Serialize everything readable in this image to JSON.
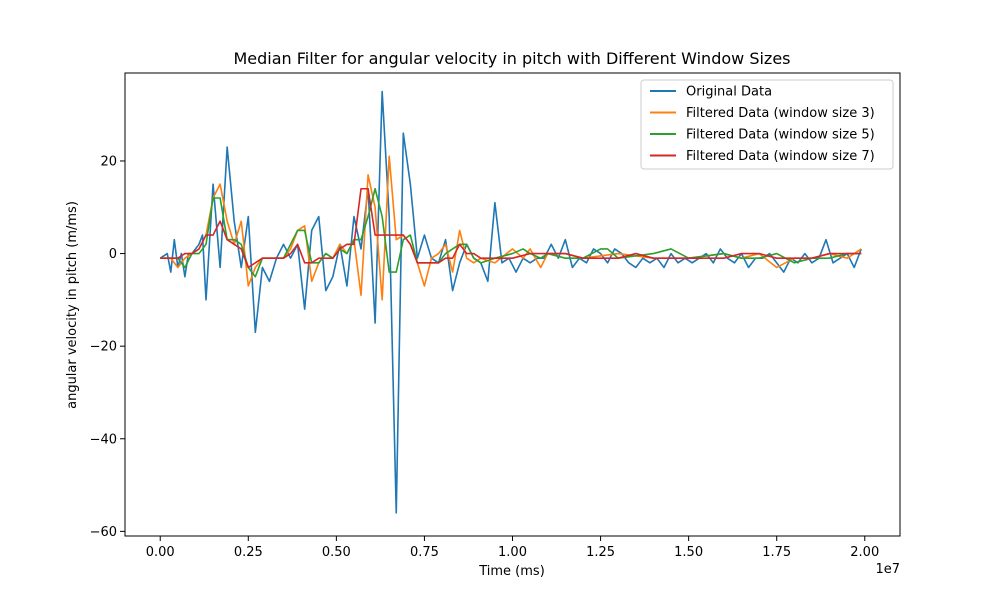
{
  "chart_data": {
    "type": "line",
    "title": "Median Filter for angular velocity in pitch with Different Window Sizes",
    "xlabel": "Time (ms)",
    "ylabel": "angular velocity in pitch (m/ms)",
    "x_offset_label": "1e7",
    "xlim": [
      -0.1,
      2.1
    ],
    "ylim": [
      -61,
      39
    ],
    "x_ticks": [
      0.0,
      0.25,
      0.5,
      0.75,
      1.0,
      1.25,
      1.5,
      1.75,
      2.0
    ],
    "x_tick_labels": [
      "0.00",
      "0.25",
      "0.50",
      "0.75",
      "1.00",
      "1.25",
      "1.50",
      "1.75",
      "2.00"
    ],
    "y_ticks": [
      -60,
      -40,
      -20,
      0,
      20
    ],
    "y_tick_labels": [
      "−60",
      "−40",
      "−20",
      "0",
      "20"
    ],
    "grid": false,
    "legend_position": "top-right",
    "series": [
      {
        "name": "Original Data",
        "color": "#1f77b4",
        "x": [
          0.0,
          0.02,
          0.03,
          0.04,
          0.05,
          0.06,
          0.07,
          0.08,
          0.09,
          0.1,
          0.11,
          0.12,
          0.13,
          0.15,
          0.17,
          0.19,
          0.21,
          0.23,
          0.25,
          0.27,
          0.29,
          0.31,
          0.33,
          0.35,
          0.37,
          0.39,
          0.41,
          0.43,
          0.45,
          0.47,
          0.49,
          0.51,
          0.53,
          0.55,
          0.57,
          0.59,
          0.61,
          0.63,
          0.65,
          0.67,
          0.69,
          0.71,
          0.73,
          0.75,
          0.77,
          0.79,
          0.81,
          0.83,
          0.85,
          0.87,
          0.89,
          0.91,
          0.93,
          0.95,
          0.97,
          0.99,
          1.01,
          1.03,
          1.05,
          1.07,
          1.09,
          1.11,
          1.13,
          1.15,
          1.17,
          1.19,
          1.21,
          1.23,
          1.25,
          1.27,
          1.29,
          1.31,
          1.33,
          1.35,
          1.37,
          1.39,
          1.41,
          1.43,
          1.45,
          1.47,
          1.49,
          1.51,
          1.53,
          1.55,
          1.57,
          1.59,
          1.61,
          1.63,
          1.65,
          1.67,
          1.69,
          1.71,
          1.73,
          1.75,
          1.77,
          1.79,
          1.81,
          1.83,
          1.85,
          1.87,
          1.89,
          1.91,
          1.93,
          1.95,
          1.97,
          1.99
        ],
        "values": [
          -1,
          0,
          -4,
          3,
          -3,
          0,
          -5,
          0,
          0,
          1,
          2,
          4,
          -10,
          15,
          -3,
          23,
          7,
          -3,
          8,
          -17,
          -3,
          -6,
          -1,
          2,
          -1,
          2,
          -12,
          5,
          8,
          -8,
          -5,
          2,
          -7,
          8,
          1,
          14,
          -15,
          35,
          8,
          -56,
          26,
          15,
          -1,
          4,
          -1,
          -2,
          3,
          -8,
          -2,
          2,
          -1,
          -2,
          -6,
          11,
          -2,
          -1,
          -4,
          -1,
          -2,
          -1,
          -1,
          2,
          -1,
          3,
          -3,
          -1,
          -2,
          1,
          0,
          -2,
          1,
          0,
          -2,
          -3,
          -1,
          -2,
          -1,
          -3,
          0,
          -2,
          -1,
          -2,
          -1,
          0,
          -2,
          1,
          -1,
          -2,
          0,
          -3,
          -1,
          -1,
          0,
          -2,
          -4,
          -1,
          -2,
          0,
          -2,
          -1,
          3,
          -2,
          -1,
          0,
          -3,
          1
        ]
      },
      {
        "name": "Filtered Data (window size 3)",
        "color": "#ff7f0e",
        "x": [
          0.0,
          0.03,
          0.05,
          0.07,
          0.09,
          0.11,
          0.13,
          0.15,
          0.17,
          0.19,
          0.21,
          0.23,
          0.25,
          0.27,
          0.29,
          0.31,
          0.33,
          0.35,
          0.37,
          0.39,
          0.41,
          0.43,
          0.45,
          0.47,
          0.49,
          0.51,
          0.53,
          0.55,
          0.57,
          0.59,
          0.61,
          0.63,
          0.65,
          0.67,
          0.69,
          0.71,
          0.73,
          0.75,
          0.77,
          0.79,
          0.81,
          0.83,
          0.85,
          0.87,
          0.89,
          0.91,
          0.95,
          1.0,
          1.03,
          1.05,
          1.08,
          1.1,
          1.15,
          1.2,
          1.3,
          1.4,
          1.5,
          1.6,
          1.65,
          1.7,
          1.75,
          1.8,
          1.85,
          1.9,
          1.95,
          1.99
        ],
        "values": [
          -1,
          -1,
          -3,
          -1,
          0,
          1,
          4,
          12,
          15,
          7,
          2,
          7,
          -7,
          -3,
          -1,
          -1,
          -1,
          -1,
          1,
          5,
          6,
          -6,
          -2,
          0,
          -1,
          2,
          0,
          3,
          -9,
          17,
          10,
          -10,
          21,
          3,
          4,
          2,
          -2,
          -7,
          -1,
          0,
          2,
          -4,
          5,
          -1,
          -2,
          -1,
          -2,
          1,
          -1,
          1,
          -3,
          0,
          0,
          -1,
          0,
          -1,
          -1,
          0,
          -1,
          0,
          -3,
          -1,
          -1,
          0,
          -1,
          1
        ]
      },
      {
        "name": "Filtered Data (window size 5)",
        "color": "#2ca02c",
        "x": [
          0.0,
          0.03,
          0.05,
          0.07,
          0.09,
          0.11,
          0.13,
          0.15,
          0.17,
          0.19,
          0.21,
          0.23,
          0.25,
          0.27,
          0.29,
          0.31,
          0.33,
          0.35,
          0.37,
          0.39,
          0.41,
          0.43,
          0.45,
          0.47,
          0.49,
          0.51,
          0.53,
          0.55,
          0.57,
          0.59,
          0.61,
          0.63,
          0.65,
          0.67,
          0.69,
          0.71,
          0.73,
          0.75,
          0.77,
          0.79,
          0.81,
          0.83,
          0.85,
          0.87,
          0.89,
          0.91,
          0.95,
          1.0,
          1.03,
          1.05,
          1.08,
          1.1,
          1.15,
          1.2,
          1.25,
          1.27,
          1.3,
          1.4,
          1.45,
          1.5,
          1.6,
          1.65,
          1.7,
          1.75,
          1.8,
          1.85,
          1.9,
          1.95,
          1.99
        ],
        "values": [
          -1,
          -1,
          -1,
          -3,
          0,
          0,
          2,
          12,
          12,
          3,
          3,
          2,
          -3,
          -5,
          -1,
          -1,
          -1,
          -1,
          2,
          5,
          5,
          -2,
          -2,
          0,
          -1,
          1,
          0,
          3,
          3,
          8,
          14,
          8,
          -4,
          -4,
          3,
          4,
          -2,
          -2,
          -2,
          -2,
          0,
          1,
          2,
          2,
          -1,
          -2,
          -1,
          0,
          1,
          0,
          -1,
          0,
          -1,
          -1,
          1,
          1,
          -1,
          0,
          1,
          -1,
          0,
          -1,
          -1,
          0,
          -2,
          -1,
          -1,
          0,
          0
        ]
      },
      {
        "name": "Filtered Data (window size 7)",
        "color": "#d62728",
        "x": [
          0.0,
          0.03,
          0.05,
          0.07,
          0.09,
          0.11,
          0.13,
          0.15,
          0.17,
          0.19,
          0.21,
          0.23,
          0.25,
          0.27,
          0.29,
          0.31,
          0.33,
          0.35,
          0.37,
          0.39,
          0.41,
          0.43,
          0.45,
          0.47,
          0.49,
          0.51,
          0.53,
          0.55,
          0.57,
          0.59,
          0.61,
          0.63,
          0.65,
          0.67,
          0.69,
          0.71,
          0.73,
          0.75,
          0.77,
          0.79,
          0.81,
          0.83,
          0.85,
          0.87,
          0.89,
          0.91,
          0.95,
          1.0,
          1.05,
          1.1,
          1.15,
          1.2,
          1.3,
          1.35,
          1.4,
          1.5,
          1.6,
          1.65,
          1.7,
          1.75,
          1.8,
          1.85,
          1.9,
          1.95,
          1.99
        ],
        "values": [
          -1,
          -1,
          -1,
          0,
          0,
          1,
          4,
          4,
          7,
          3,
          2,
          1,
          -3,
          -2,
          -1,
          -1,
          -1,
          -1,
          0,
          2,
          -2,
          -2,
          -1,
          -1,
          -1,
          1,
          2,
          2,
          14,
          14,
          4,
          4,
          4,
          4,
          4,
          2,
          -2,
          -2,
          -2,
          -2,
          -1,
          -1,
          2,
          0,
          0,
          -1,
          -1,
          -1,
          0,
          0,
          0,
          -1,
          -1,
          0,
          -1,
          -1,
          -1,
          0,
          0,
          -1,
          -1,
          -1,
          0,
          0,
          0
        ]
      }
    ]
  }
}
